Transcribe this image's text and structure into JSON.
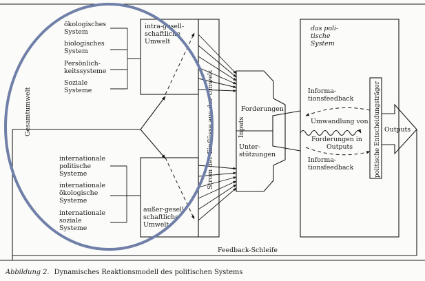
{
  "environment_labels": {
    "oekologisches": [
      "ökologisches",
      "System"
    ],
    "biologisches": [
      "biologisches",
      "System"
    ],
    "persoenlichkeit": [
      "Persönlich-",
      "keitssysteme"
    ],
    "soziale": [
      "Soziale",
      "Systeme"
    ],
    "int_politische": [
      "internationale",
      "politische",
      "Systeme"
    ],
    "int_oekologische": [
      "internationale",
      "ökologische",
      "Systeme"
    ],
    "int_soziale": [
      "internationale",
      "soziale",
      "Systeme"
    ]
  },
  "boxes": {
    "intra": [
      "intra-gesell-",
      "schaftliche",
      "Umwelt"
    ],
    "ausser": [
      "außer-gesell-",
      "schaftliche",
      "Umwelt"
    ],
    "strom": "Strom der Einflüsse aus der Umwelt",
    "gesamtumwelt": "Gesamtumwelt",
    "inputs": "Inputs",
    "forderungen": "Forderungen",
    "unterstuetzungen": [
      "Unter-",
      "stützungen"
    ],
    "system": [
      "das poli-",
      "tische",
      "System"
    ],
    "informationsfeedback_top": [
      "Informa-",
      "tionsfeedback"
    ],
    "umwandlung": [
      "Umwandlung von",
      "Forderungen in",
      "Outputs"
    ],
    "informationsfeedback_bottom": [
      "Informa-",
      "tionsfeedback"
    ],
    "entscheidungstraeger": "politische Entscheidungsträger",
    "outputs": "Outputs",
    "feedback_schleife": "Feedback-Schleife"
  },
  "caption": {
    "label": "Abbildung 2.",
    "text": "Dynamisches Reaktionsmodell des politischen Systems"
  },
  "colors": {
    "ellipse": "#6f7fa8",
    "ink": "#1a1a1a",
    "paper": "#fbfbf9"
  }
}
